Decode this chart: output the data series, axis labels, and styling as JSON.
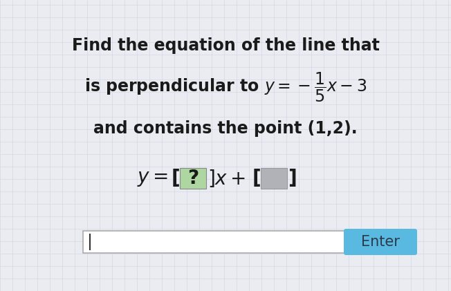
{
  "background_color": "#eaecf2",
  "grid_color": "#d5d8e4",
  "text_color": "#1a1a1a",
  "box_green_color": "#aed6a0",
  "box_gray_color": "#b0b2b8",
  "enter_button_color": "#5ab9e0",
  "enter_text_color": "#2a3a4a",
  "enter_text": "Enter",
  "font_size_main": 17,
  "font_size_answer": 20,
  "font_size_enter": 15,
  "line1_text": "Find the equation of the line that",
  "line3_text": "and contains the point (1,2).",
  "figwidth": 6.52,
  "figheight": 4.21,
  "dpi": 100
}
